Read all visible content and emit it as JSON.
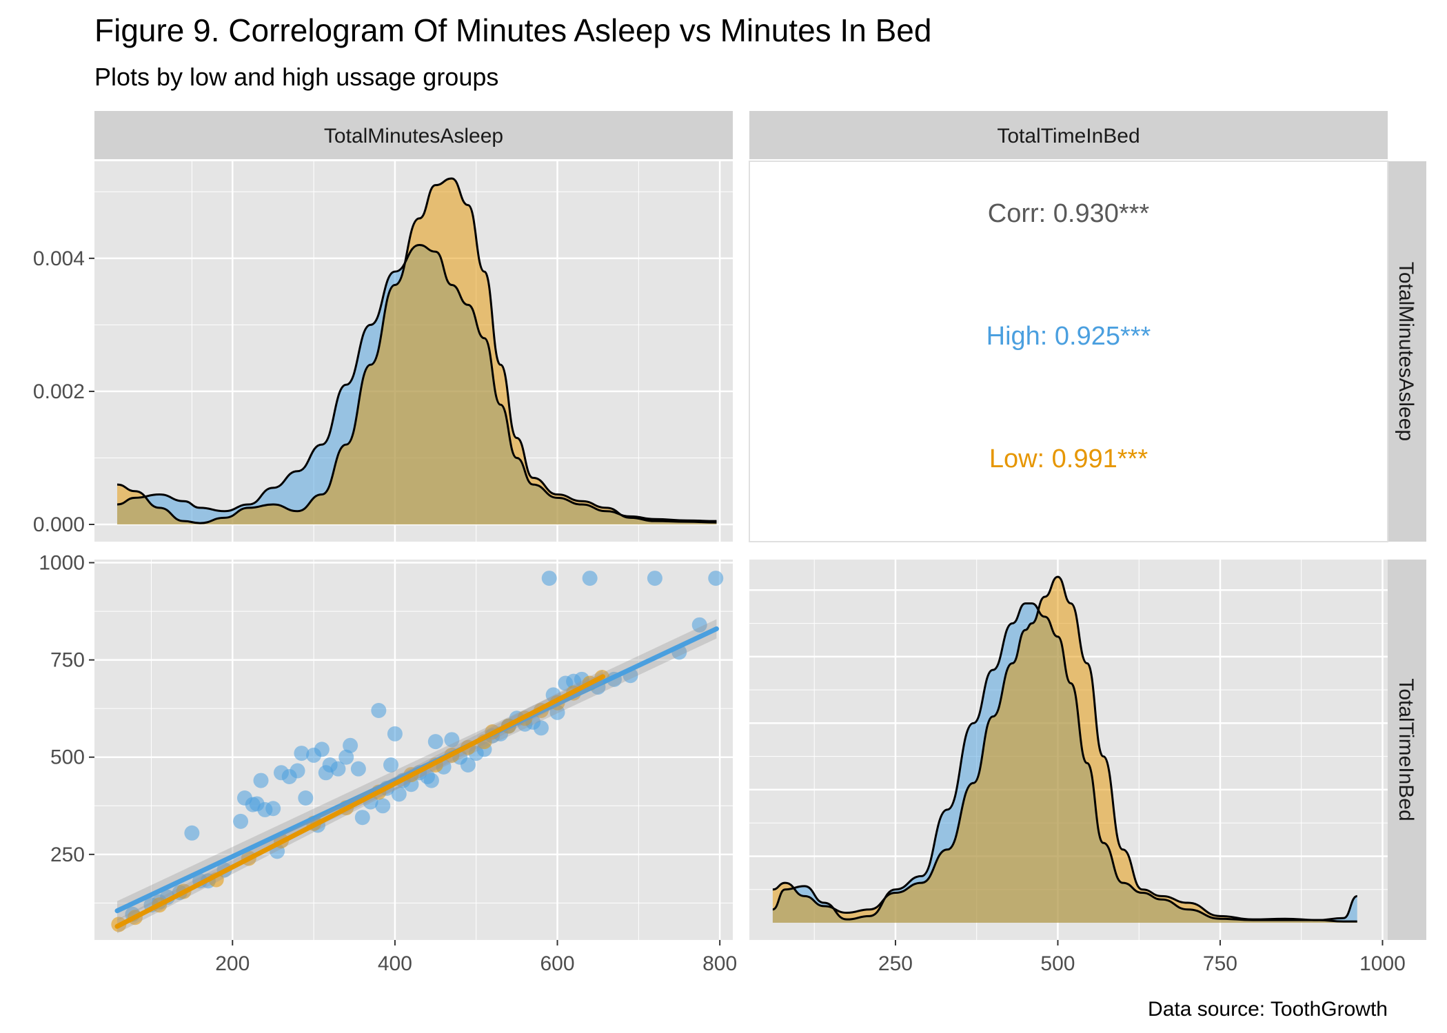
{
  "title": "Figure 9. Correlogram Of Minutes Asleep vs Minutes In Bed",
  "subtitle": "Plots by low and high ussage groups",
  "caption": "Data source: ToothGrowth",
  "colors": {
    "high": "#4a9fdf",
    "low": "#e69600",
    "panel_bg": "#e5e5e5",
    "strip_bg": "#d1d1d1",
    "grid": "#ffffff",
    "corr_text": "#595959"
  },
  "strips": {
    "col1": "TotalMinutesAsleep",
    "col2": "TotalTimeInBed",
    "row1": "TotalMinutesAsleep",
    "row2": "TotalTimeInBed"
  },
  "correlations": {
    "overall": "Corr: 0.930***",
    "high": "High: 0.925***",
    "low": "Low: 0.991***"
  },
  "chart_data": [
    {
      "type": "area",
      "panel": "density TotalMinutesAsleep",
      "xlim": [
        58,
        796
      ],
      "ylim": [
        0,
        0.0052
      ],
      "y_ticks": [
        "0.000",
        "0.002",
        "0.004"
      ],
      "y_tick_values": [
        0,
        0.002,
        0.004
      ],
      "series": [
        {
          "name": "High",
          "x": [
            58,
            80,
            110,
            140,
            160,
            190,
            220,
            250,
            280,
            310,
            340,
            370,
            400,
            430,
            450,
            470,
            490,
            510,
            530,
            550,
            570,
            600,
            630,
            660,
            690,
            720,
            760,
            796
          ],
          "values": [
            0.0003,
            0.0004,
            0.00045,
            0.00035,
            0.00025,
            0.0002,
            0.0003,
            0.00055,
            0.0008,
            0.0012,
            0.0021,
            0.003,
            0.0038,
            0.0042,
            0.0041,
            0.0036,
            0.0033,
            0.0028,
            0.0018,
            0.001,
            0.0006,
            0.0004,
            0.0003,
            0.0002,
            0.00012,
            8e-05,
            6e-05,
            5e-05
          ]
        },
        {
          "name": "Low",
          "x": [
            58,
            80,
            110,
            140,
            160,
            190,
            220,
            250,
            280,
            310,
            340,
            370,
            400,
            430,
            450,
            470,
            490,
            510,
            530,
            550,
            570,
            600,
            630,
            660,
            690,
            720,
            760,
            796
          ],
          "values": [
            0.0006,
            0.0005,
            0.00025,
            5e-05,
            2e-05,
            0.0001,
            0.00025,
            0.0003,
            0.0002,
            0.00045,
            0.0012,
            0.0024,
            0.0036,
            0.0046,
            0.0051,
            0.0052,
            0.0048,
            0.0038,
            0.0024,
            0.0013,
            0.0007,
            0.00045,
            0.00035,
            0.00025,
            0.0001,
            5e-05,
            4e-05,
            3e-05
          ]
        }
      ]
    },
    {
      "type": "scatter",
      "panel": "TotalMinutesAsleep (x) vs TotalTimeInBed (y)",
      "xlim": [
        30,
        816
      ],
      "ylim": [
        30,
        1008
      ],
      "x_ticks": [
        "200",
        "400",
        "600",
        "800"
      ],
      "x_tick_values": [
        200,
        400,
        600,
        800
      ],
      "y_ticks": [
        "250",
        "500",
        "750",
        "1000"
      ],
      "y_tick_values": [
        250,
        500,
        750,
        1000
      ],
      "series": [
        {
          "name": "High",
          "points": [
            [
              77,
              96
            ],
            [
              100,
              120
            ],
            [
              110,
              128
            ],
            [
              120,
              140
            ],
            [
              135,
              152
            ],
            [
              150,
              305
            ],
            [
              160,
              182
            ],
            [
              170,
              182
            ],
            [
              190,
              210
            ],
            [
              210,
              335
            ],
            [
              215,
              395
            ],
            [
              225,
              378
            ],
            [
              230,
              380
            ],
            [
              235,
              440
            ],
            [
              240,
              365
            ],
            [
              250,
              368
            ],
            [
              255,
              258
            ],
            [
              260,
              460
            ],
            [
              270,
              450
            ],
            [
              280,
              465
            ],
            [
              285,
              510
            ],
            [
              290,
              395
            ],
            [
              300,
              505
            ],
            [
              305,
              325
            ],
            [
              310,
              520
            ],
            [
              315,
              460
            ],
            [
              320,
              480
            ],
            [
              330,
              470
            ],
            [
              340,
              500
            ],
            [
              345,
              530
            ],
            [
              355,
              470
            ],
            [
              360,
              345
            ],
            [
              370,
              385
            ],
            [
              380,
              620
            ],
            [
              385,
              375
            ],
            [
              390,
              420
            ],
            [
              395,
              480
            ],
            [
              400,
              560
            ],
            [
              405,
              405
            ],
            [
              410,
              440
            ],
            [
              420,
              430
            ],
            [
              430,
              460
            ],
            [
              440,
              450
            ],
            [
              445,
              440
            ],
            [
              450,
              540
            ],
            [
              460,
              475
            ],
            [
              470,
              545
            ],
            [
              480,
              500
            ],
            [
              490,
              480
            ],
            [
              500,
              510
            ],
            [
              510,
              520
            ],
            [
              520,
              555
            ],
            [
              530,
              560
            ],
            [
              540,
              580
            ],
            [
              550,
              600
            ],
            [
              560,
              585
            ],
            [
              570,
              590
            ],
            [
              580,
              575
            ],
            [
              590,
              960
            ],
            [
              595,
              660
            ],
            [
              600,
              615
            ],
            [
              610,
              690
            ],
            [
              620,
              695
            ],
            [
              630,
              700
            ],
            [
              640,
              960
            ],
            [
              650,
              680
            ],
            [
              670,
              700
            ],
            [
              690,
              710
            ],
            [
              720,
              960
            ],
            [
              750,
              770
            ],
            [
              775,
              840
            ],
            [
              795,
              960
            ]
          ]
        },
        {
          "name": "Low",
          "points": [
            [
              60,
              70
            ],
            [
              80,
              88
            ],
            [
              110,
              120
            ],
            [
              140,
              155
            ],
            [
              180,
              185
            ],
            [
              220,
              240
            ],
            [
              260,
              285
            ],
            [
              300,
              330
            ],
            [
              340,
              370
            ],
            [
              380,
              410
            ],
            [
              420,
              455
            ],
            [
              450,
              480
            ],
            [
              470,
              505
            ],
            [
              490,
              525
            ],
            [
              510,
              540
            ],
            [
              520,
              565
            ],
            [
              540,
              580
            ],
            [
              560,
              600
            ],
            [
              580,
              620
            ],
            [
              600,
              640
            ],
            [
              620,
              665
            ],
            [
              640,
              690
            ],
            [
              655,
              705
            ]
          ]
        }
      ],
      "fits": [
        {
          "name": "High",
          "x": [
            58,
            796
          ],
          "y": [
            105,
            830
          ]
        },
        {
          "name": "Low",
          "x": [
            58,
            656
          ],
          "y": [
            65,
            707
          ]
        }
      ]
    },
    {
      "type": "area",
      "panel": "density TotalTimeInBed",
      "xlim": [
        61,
        961
      ],
      "ylim": [
        0,
        0.0052
      ],
      "x_ticks": [
        "250",
        "500",
        "750",
        "1000"
      ],
      "x_tick_values": [
        250,
        500,
        750,
        1000
      ],
      "series": [
        {
          "name": "High",
          "x": [
            61,
            80,
            110,
            140,
            175,
            210,
            250,
            290,
            330,
            370,
            400,
            430,
            450,
            460,
            480,
            500,
            520,
            545,
            570,
            600,
            630,
            660,
            700,
            750,
            800,
            850,
            900,
            940,
            961
          ],
          "values": [
            0.0002,
            0.0005,
            0.00055,
            0.0003,
            5e-05,
            0.0001,
            0.0005,
            0.0007,
            0.0017,
            0.003,
            0.0038,
            0.0045,
            0.0048,
            0.0048,
            0.0046,
            0.0043,
            0.0036,
            0.0024,
            0.0012,
            0.0006,
            0.00045,
            0.00035,
            0.0002,
            6e-05,
            4e-05,
            4e-05,
            4e-05,
            7e-05,
            0.0004
          ]
        },
        {
          "name": "Low",
          "x": [
            61,
            80,
            110,
            140,
            175,
            210,
            250,
            290,
            330,
            370,
            400,
            430,
            450,
            460,
            480,
            500,
            520,
            545,
            570,
            600,
            630,
            660,
            700,
            750,
            800,
            850,
            900,
            940,
            961
          ],
          "values": [
            0.0005,
            0.0006,
            0.0004,
            0.00025,
            0.00015,
            0.0002,
            0.00045,
            0.0006,
            0.0011,
            0.0021,
            0.0031,
            0.0039,
            0.0044,
            0.0045,
            0.0049,
            0.0052,
            0.0048,
            0.0039,
            0.0025,
            0.0011,
            0.0005,
            0.0004,
            0.0003,
            0.0001,
            5e-05,
            6e-05,
            4e-05,
            2e-05,
            2e-05
          ]
        }
      ]
    }
  ]
}
